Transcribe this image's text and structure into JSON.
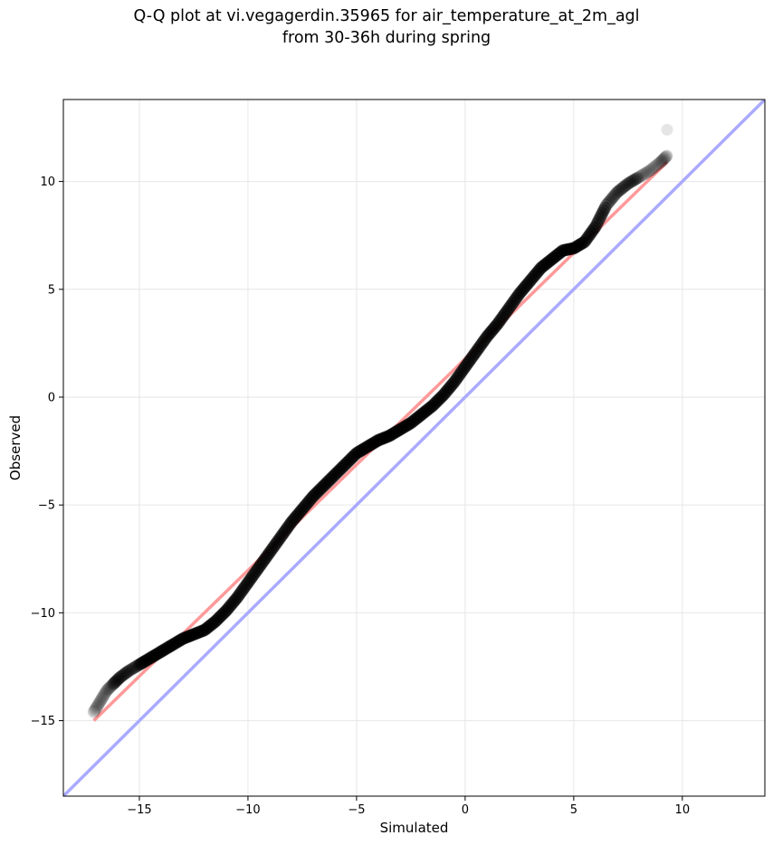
{
  "chart_data": {
    "type": "scatter",
    "title": [
      "Q-Q plot at vi.vegagerdin.35965 for air_temperature_at_2m_agl",
      "from 30-36h during spring"
    ],
    "xlabel": "Simulated",
    "ylabel": "Observed",
    "xlim": [
      -18.5,
      13.8
    ],
    "ylim": [
      -18.5,
      13.8
    ],
    "xticks": [
      -15,
      -10,
      -5,
      0,
      5,
      10
    ],
    "yticks": [
      -15,
      -10,
      -5,
      0,
      5,
      10
    ],
    "xticklabels": [
      "−15",
      "−10",
      "−5",
      "0",
      "5",
      "10"
    ],
    "yticklabels": [
      "−15",
      "−10",
      "−5",
      "0",
      "5",
      "10"
    ],
    "grid": true,
    "legend": "none",
    "identity_line": {
      "color": "#aaaaff",
      "points": [
        [
          -18.5,
          -18.5
        ],
        [
          13.8,
          13.8
        ]
      ]
    },
    "fit_line": {
      "color": "#ff9999",
      "points": [
        [
          -17.1,
          -15.0
        ],
        [
          9.3,
          10.9
        ]
      ]
    },
    "points_color": "#000000",
    "quantile_curve": [
      [
        -17.1,
        -14.6
      ],
      [
        -16.8,
        -14.1
      ],
      [
        -16.5,
        -13.6
      ],
      [
        -16.2,
        -13.3
      ],
      [
        -15.9,
        -13.0
      ],
      [
        -15.5,
        -12.7
      ],
      [
        -15.0,
        -12.4
      ],
      [
        -14.5,
        -12.1
      ],
      [
        -14.0,
        -11.8
      ],
      [
        -13.5,
        -11.5
      ],
      [
        -13.0,
        -11.2
      ],
      [
        -12.5,
        -11.0
      ],
      [
        -12.0,
        -10.8
      ],
      [
        -11.5,
        -10.4
      ],
      [
        -11.0,
        -9.9
      ],
      [
        -10.5,
        -9.3
      ],
      [
        -10.0,
        -8.6
      ],
      [
        -9.5,
        -7.9
      ],
      [
        -9.0,
        -7.2
      ],
      [
        -8.5,
        -6.5
      ],
      [
        -8.0,
        -5.8
      ],
      [
        -7.5,
        -5.2
      ],
      [
        -7.0,
        -4.6
      ],
      [
        -6.5,
        -4.1
      ],
      [
        -6.0,
        -3.6
      ],
      [
        -5.5,
        -3.1
      ],
      [
        -5.0,
        -2.6
      ],
      [
        -4.5,
        -2.3
      ],
      [
        -4.0,
        -2.0
      ],
      [
        -3.5,
        -1.8
      ],
      [
        -3.0,
        -1.5
      ],
      [
        -2.5,
        -1.2
      ],
      [
        -2.0,
        -0.8
      ],
      [
        -1.5,
        -0.4
      ],
      [
        -1.0,
        0.1
      ],
      [
        -0.5,
        0.7
      ],
      [
        0.0,
        1.4
      ],
      [
        0.5,
        2.1
      ],
      [
        1.0,
        2.8
      ],
      [
        1.5,
        3.4
      ],
      [
        2.0,
        4.1
      ],
      [
        2.5,
        4.8
      ],
      [
        3.0,
        5.4
      ],
      [
        3.5,
        6.0
      ],
      [
        4.0,
        6.4
      ],
      [
        4.5,
        6.8
      ],
      [
        5.0,
        6.9
      ],
      [
        5.5,
        7.2
      ],
      [
        6.0,
        7.9
      ],
      [
        6.5,
        8.9
      ],
      [
        7.0,
        9.5
      ],
      [
        7.5,
        9.9
      ],
      [
        8.0,
        10.2
      ],
      [
        8.5,
        10.5
      ],
      [
        9.0,
        10.9
      ],
      [
        9.3,
        11.2
      ],
      [
        9.3,
        12.4
      ]
    ]
  }
}
